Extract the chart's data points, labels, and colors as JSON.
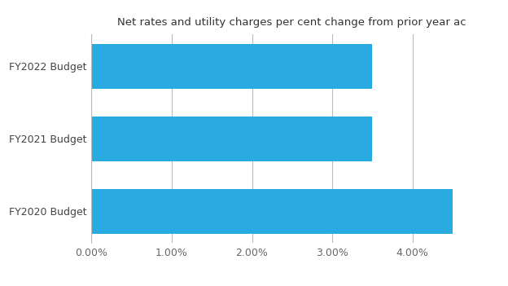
{
  "title": "Net rates and utility charges per cent change from prior year ac",
  "categories": [
    "FY2022 Budget",
    "FY2021 Budget",
    "FY2020 Budget"
  ],
  "values": [
    3.5,
    3.5,
    4.5
  ],
  "bar_color": "#29ABE2",
  "background_color": "#ffffff",
  "xlim": [
    0,
    5.0
  ],
  "xticks": [
    0.0,
    1.0,
    2.0,
    3.0,
    4.0
  ],
  "xtick_labels": [
    "0.00%",
    "1.00%",
    "2.00%",
    "3.00%",
    "4.00%"
  ],
  "title_fontsize": 9.5,
  "tick_fontsize": 9,
  "label_fontsize": 9,
  "grid_color": "#bbbbbb",
  "bar_height": 0.62,
  "tick_color": "#666666",
  "label_color": "#444444"
}
